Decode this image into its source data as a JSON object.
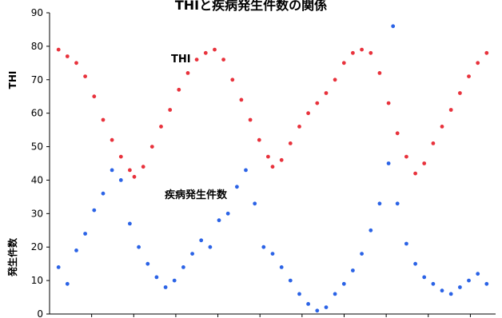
{
  "chart_data": {
    "type": "scatter",
    "title": "THIと疾病発生件数の関係",
    "ylabel_top": "THI",
    "ylabel_bottom": "発生件数",
    "ylim": [
      0,
      90
    ],
    "yticks": [
      "0",
      "10",
      "20",
      "30",
      "40",
      "50",
      "60",
      "70",
      "80",
      "90"
    ],
    "grid": false,
    "annotations": {
      "thi": "THI",
      "disease": "疾病発生件数"
    },
    "colors": {
      "thi": "#e8323c",
      "disease": "#2b63e6"
    },
    "series": [
      {
        "key": "thi",
        "values": [
          [
            0.02,
            79
          ],
          [
            0.04,
            77
          ],
          [
            0.06,
            75
          ],
          [
            0.08,
            71
          ],
          [
            0.1,
            65
          ],
          [
            0.12,
            58
          ],
          [
            0.14,
            52
          ],
          [
            0.16,
            47
          ],
          [
            0.18,
            43
          ],
          [
            0.19,
            41
          ],
          [
            0.21,
            44
          ],
          [
            0.23,
            50
          ],
          [
            0.25,
            56
          ],
          [
            0.27,
            61
          ],
          [
            0.29,
            67
          ],
          [
            0.31,
            72
          ],
          [
            0.33,
            76
          ],
          [
            0.35,
            78
          ],
          [
            0.37,
            79
          ],
          [
            0.39,
            76
          ],
          [
            0.41,
            70
          ],
          [
            0.43,
            64
          ],
          [
            0.45,
            58
          ],
          [
            0.47,
            52
          ],
          [
            0.49,
            47
          ],
          [
            0.5,
            44
          ],
          [
            0.52,
            46
          ],
          [
            0.54,
            51
          ],
          [
            0.56,
            56
          ],
          [
            0.58,
            60
          ],
          [
            0.6,
            63
          ],
          [
            0.62,
            66
          ],
          [
            0.64,
            70
          ],
          [
            0.66,
            75
          ],
          [
            0.68,
            78
          ],
          [
            0.7,
            79
          ],
          [
            0.72,
            78
          ],
          [
            0.74,
            72
          ],
          [
            0.76,
            63
          ],
          [
            0.78,
            54
          ],
          [
            0.8,
            47
          ],
          [
            0.82,
            42
          ],
          [
            0.84,
            45
          ],
          [
            0.86,
            51
          ],
          [
            0.88,
            56
          ],
          [
            0.9,
            61
          ],
          [
            0.92,
            66
          ],
          [
            0.94,
            71
          ],
          [
            0.96,
            75
          ],
          [
            0.98,
            78
          ]
        ]
      },
      {
        "key": "disease",
        "values": [
          [
            0.02,
            14
          ],
          [
            0.04,
            9
          ],
          [
            0.06,
            19
          ],
          [
            0.08,
            24
          ],
          [
            0.1,
            31
          ],
          [
            0.12,
            36
          ],
          [
            0.14,
            43
          ],
          [
            0.16,
            40
          ],
          [
            0.18,
            27
          ],
          [
            0.2,
            20
          ],
          [
            0.22,
            15
          ],
          [
            0.24,
            11
          ],
          [
            0.26,
            8
          ],
          [
            0.28,
            10
          ],
          [
            0.3,
            14
          ],
          [
            0.32,
            18
          ],
          [
            0.34,
            22
          ],
          [
            0.36,
            20
          ],
          [
            0.38,
            28
          ],
          [
            0.4,
            30
          ],
          [
            0.42,
            38
          ],
          [
            0.44,
            43
          ],
          [
            0.46,
            33
          ],
          [
            0.48,
            20
          ],
          [
            0.5,
            18
          ],
          [
            0.52,
            14
          ],
          [
            0.54,
            10
          ],
          [
            0.56,
            6
          ],
          [
            0.58,
            3
          ],
          [
            0.6,
            1
          ],
          [
            0.62,
            2
          ],
          [
            0.64,
            6
          ],
          [
            0.66,
            9
          ],
          [
            0.68,
            13
          ],
          [
            0.7,
            18
          ],
          [
            0.72,
            25
          ],
          [
            0.74,
            33
          ],
          [
            0.76,
            45
          ],
          [
            0.78,
            33
          ],
          [
            0.8,
            21
          ],
          [
            0.82,
            15
          ],
          [
            0.84,
            11
          ],
          [
            0.86,
            9
          ],
          [
            0.88,
            7
          ],
          [
            0.9,
            6
          ],
          [
            0.92,
            8
          ],
          [
            0.94,
            10
          ],
          [
            0.96,
            12
          ],
          [
            0.98,
            9
          ],
          [
            0.77,
            86
          ]
        ]
      }
    ]
  }
}
